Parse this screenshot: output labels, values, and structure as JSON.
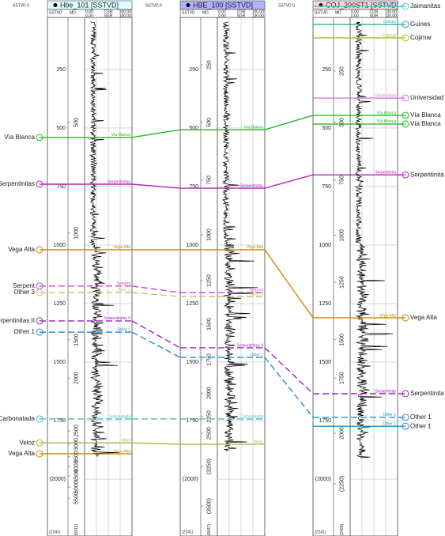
{
  "depth_range": [
    -47,
    2243
  ],
  "wells": [
    {
      "name": "Hbe_101 [SSTVD]",
      "header_color": "#dffcff",
      "top_label": "SSTVD 0",
      "columns": [
        "SSTVD",
        "MD"
      ],
      "curves": [
        {
          "min": "0.00",
          "name": "CGR",
          "max": "100.00"
        },
        {
          "min": "0.00",
          "name": "SGR",
          "max": "100.00"
        }
      ],
      "labels": "left",
      "log_interval": [
        47,
        1905
      ],
      "sstvd_ticks": [
        250,
        500,
        750,
        1000,
        1250,
        1500,
        1750,
        {
          "value": 2000,
          "label": "(2000)"
        }
      ],
      "sstvd_bottom": "(2241)",
      "md_ticks": [
        {
          "value": 476,
          "label": "500"
        },
        {
          "value": 949,
          "label": "1000"
        },
        {
          "value": 1405,
          "label": "1500"
        },
        {
          "value": 1568,
          "label": "2000"
        },
        {
          "value": 1794,
          "label": "2500"
        },
        {
          "value": 1851,
          "label": "3000"
        },
        {
          "value": 1905,
          "label": "3500"
        },
        {
          "value": 1946,
          "label": "4000"
        },
        {
          "value": 1986,
          "label": "4500"
        },
        {
          "value": 2034,
          "label": "5000"
        },
        {
          "value": 2081,
          "label": "5500"
        }
      ],
      "md_bottom": "(5913)",
      "tops": [
        {
          "name": "Vía Blanca",
          "depth": 540,
          "color": "#22bb22",
          "dashed": false
        },
        {
          "name": "Serpentinitas",
          "depth": 740,
          "color": "#bb22bb",
          "dashed": false
        },
        {
          "name": "Vega Alta",
          "depth": 1020,
          "color": "#cc8800",
          "dashed": false
        },
        {
          "name": "Serpent",
          "depth": 1175,
          "color": "#cc44cc",
          "dashed": true
        },
        {
          "name": "Other 3",
          "depth": 1203,
          "color": "#c8c070",
          "dashed": true
        },
        {
          "name": "Serpentinitas II",
          "depth": 1324,
          "color": "#a020c0",
          "dashed": true
        },
        {
          "name": "Other 1",
          "depth": 1372,
          "color": "#2090d0",
          "dashed": true
        },
        {
          "name": "Carbonatada",
          "depth": 1743,
          "color": "#40c0c0",
          "dashed": true
        },
        {
          "name": "Veloz",
          "depth": 1845,
          "color": "#b8b040",
          "dashed": false
        },
        {
          "name": "Vega Alta",
          "depth": 1892,
          "color": "#cc8800",
          "dashed": false
        }
      ]
    },
    {
      "name": "HBE_100 [SSTVD]",
      "header_color": "#b0b0ff",
      "top_label": "SSTVD 0",
      "columns": [
        "SSTVD",
        "MD"
      ],
      "curves": [
        {
          "min": "0.00",
          "name": "CGR",
          "max": "100.00"
        },
        {
          "min": "0.00",
          "name": "SGR",
          "max": "100.00"
        }
      ],
      "labels": "none",
      "log_interval": [
        47,
        1880
      ],
      "sstvd_ticks": [
        250,
        500,
        750,
        1000,
        1250,
        1500,
        1750,
        {
          "value": 2000,
          "label": "(2000)"
        }
      ],
      "sstvd_bottom": "(2241)",
      "md_ticks": [
        {
          "value": 230,
          "label": "250"
        },
        {
          "value": 476,
          "label": "500"
        },
        {
          "value": 723,
          "label": "750"
        },
        {
          "value": 956,
          "label": "1000"
        },
        {
          "value": 1152,
          "label": "1250"
        },
        {
          "value": 1338,
          "label": "1500"
        },
        {
          "value": 1490,
          "label": "1750"
        },
        {
          "value": 1632,
          "label": "2000"
        },
        {
          "value": 1733,
          "label": "2250"
        },
        {
          "value": 1804,
          "label": "2500"
        },
        {
          "value": 1946,
          "label": "(3250)"
        },
        {
          "value": 2115,
          "label": "(3500)"
        }
      ],
      "md_bottom": "(5647)",
      "tops": [
        {
          "name": "Vía Blanca",
          "depth": 507,
          "color": "#22bb22",
          "dashed": false
        },
        {
          "name": "Serpentinitas",
          "depth": 757,
          "color": "#bb22bb",
          "dashed": false
        },
        {
          "name": "Vega Alta",
          "depth": 1020,
          "color": "#cc8800",
          "dashed": false
        },
        {
          "name": "Serpent",
          "depth": 1203,
          "color": "#cc44cc",
          "dashed": true
        },
        {
          "name": "Other 3",
          "depth": 1220,
          "color": "#c8c070",
          "dashed": true
        },
        {
          "name": "Serpentinitas II",
          "depth": 1439,
          "color": "#a020c0",
          "dashed": true
        },
        {
          "name": "Other 1",
          "depth": 1480,
          "color": "#2090d0",
          "dashed": true
        },
        {
          "name": "Carbonatada",
          "depth": 1743,
          "color": "#40c0c0",
          "dashed": true
        },
        {
          "name": "Veloz",
          "depth": 1851,
          "color": "#b8b040",
          "dashed": false
        }
      ]
    },
    {
      "name": "COJ_200ST1 [SSTVD]",
      "header_color": "#ffd8d8",
      "top_label": "SSTVD 0",
      "columns": [
        "SSTVD",
        "MD"
      ],
      "curves": [
        {
          "min": "0.00",
          "name": "CGR",
          "max": "100.00"
        },
        {
          "min": "0.00",
          "name": "SGR",
          "max": "100.00"
        }
      ],
      "labels": "right",
      "log_interval": [
        47,
        1910
      ],
      "sstvd_ticks": [
        250,
        500,
        750,
        1000,
        1250,
        1500,
        1750,
        {
          "value": 2000,
          "label": "(2000)"
        }
      ],
      "sstvd_bottom": "(2241)",
      "md_ticks": [
        {
          "value": 257,
          "label": "250"
        },
        {
          "value": 476,
          "label": "500"
        },
        {
          "value": 723,
          "label": "750"
        },
        {
          "value": 959,
          "label": "1000"
        },
        {
          "value": 1159,
          "label": "1250"
        },
        {
          "value": 1405,
          "label": "1500"
        },
        {
          "value": 1568,
          "label": "1750"
        },
        {
          "value": 1804,
          "label": "2000"
        },
        {
          "value": 2020,
          "label": "(2250)"
        }
      ],
      "md_bottom": "(2469)",
      "tops": [
        {
          "name": "Jaimanitas",
          "depth": -20,
          "color": "#40c8e0",
          "dashed": false
        },
        {
          "name": "Guines",
          "depth": 57,
          "color": "#20b0a0",
          "dashed": false
        },
        {
          "name": "Cojimar",
          "depth": 115,
          "color": "#a0c020",
          "dashed": false
        },
        {
          "name": "Universidad",
          "depth": 372,
          "color": "#e070e0",
          "dashed": false
        },
        {
          "name": "Vía Blanca",
          "depth": 446,
          "color": "#22bb22",
          "dashed": false
        },
        {
          "name": "Vía Blanca",
          "depth": 483,
          "color": "#22bb22",
          "dashed": false
        },
        {
          "name": "Serpentinita",
          "depth": 700,
          "color": "#bb22bb",
          "dashed": false
        },
        {
          "name": "Vega Alta",
          "depth": 1311,
          "color": "#cc8800",
          "dashed": false
        },
        {
          "name": "Serpentinita",
          "depth": 1635,
          "color": "#a020c0",
          "dashed": true
        },
        {
          "name": "Other 1",
          "depth": 1736,
          "color": "#2090d0",
          "dashed": true
        },
        {
          "name": "Other 1",
          "depth": 1774,
          "color": "#2090d0",
          "dashed": false
        }
      ]
    }
  ]
}
